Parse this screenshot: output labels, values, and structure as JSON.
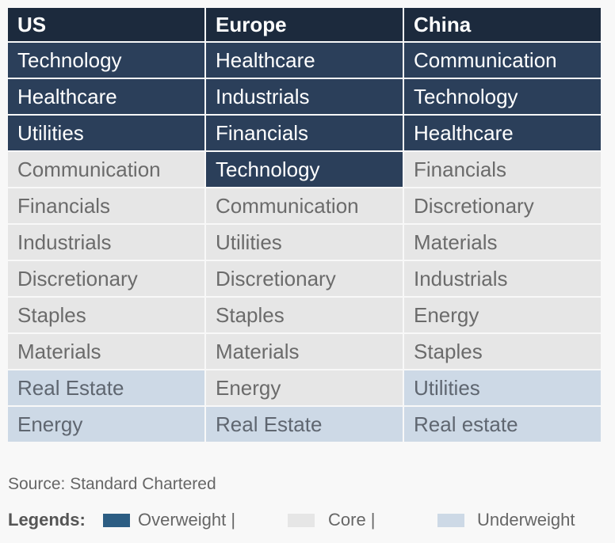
{
  "table": {
    "header": [
      "US",
      "Europe",
      "China"
    ],
    "rows": [
      [
        {
          "text": "Technology",
          "color": "#2b3f5a"
        },
        {
          "text": "Healthcare",
          "color": "#2b3f5a"
        },
        {
          "text": "Communication",
          "color": "#2b3f5a"
        }
      ],
      [
        {
          "text": "Healthcare",
          "color": "#2b3f5a"
        },
        {
          "text": "Industrials",
          "color": "#2b3f5a"
        },
        {
          "text": "Technology",
          "color": "#2b3f5a"
        }
      ],
      [
        {
          "text": "Utilities",
          "color": "#2b3f5a"
        },
        {
          "text": "Financials",
          "color": "#2b3f5a"
        },
        {
          "text": "Healthcare",
          "color": "#2b3f5a"
        }
      ],
      [
        {
          "text": "Communication",
          "color": "#e6e6e6"
        },
        {
          "text": "Technology",
          "color": "#2b3f5a"
        },
        {
          "text": "Financials",
          "color": "#e6e6e6"
        }
      ],
      [
        {
          "text": "Financials",
          "color": "#e6e6e6"
        },
        {
          "text": "Communication",
          "color": "#e6e6e6"
        },
        {
          "text": "Discretionary",
          "color": "#e6e6e6"
        }
      ],
      [
        {
          "text": "Industrials",
          "color": "#e6e6e6"
        },
        {
          "text": "Utilities",
          "color": "#e6e6e6"
        },
        {
          "text": "Materials",
          "color": "#e6e6e6"
        }
      ],
      [
        {
          "text": "Discretionary",
          "color": "#e6e6e6"
        },
        {
          "text": "Discretionary",
          "color": "#e6e6e6"
        },
        {
          "text": "Industrials",
          "color": "#e6e6e6"
        }
      ],
      [
        {
          "text": "Staples",
          "color": "#e6e6e6"
        },
        {
          "text": "Staples",
          "color": "#e6e6e6"
        },
        {
          "text": "Energy",
          "color": "#e6e6e6"
        }
      ],
      [
        {
          "text": "Materials",
          "color": "#e6e6e6"
        },
        {
          "text": "Materials",
          "color": "#e6e6e6"
        },
        {
          "text": "Staples",
          "color": "#e6e6e6"
        }
      ],
      [
        {
          "text": "Real Estate",
          "color": "#cdd9e6"
        },
        {
          "text": "Energy",
          "color": "#e6e6e6"
        },
        {
          "text": "Utilities",
          "color": "#cdd9e6"
        }
      ],
      [
        {
          "text": "Energy",
          "color": "#cdd9e6"
        },
        {
          "text": "Real Estate",
          "color": "#cdd9e6"
        },
        {
          "text": "Real estate",
          "color": "#cdd9e6"
        }
      ]
    ]
  },
  "source": "Source: Standard Chartered",
  "legend": {
    "title": "Legends:",
    "items": [
      {
        "label": "Overweight |",
        "color": "#2c5d83"
      },
      {
        "label": "Core |",
        "color": "#e6e6e6"
      },
      {
        "label": "Underweight",
        "color": "#cdd9e6"
      }
    ]
  }
}
